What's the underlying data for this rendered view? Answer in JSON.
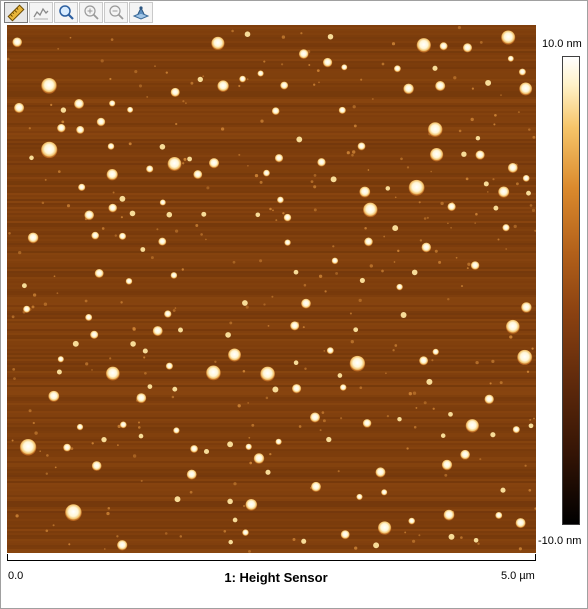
{
  "toolbar": {
    "tools": [
      {
        "icon": "ruler-icon",
        "active": true
      },
      {
        "icon": "section-icon",
        "active": false
      },
      {
        "icon": "zoom-icon",
        "active": false
      },
      {
        "icon": "zoom-in-icon",
        "active": false
      },
      {
        "icon": "zoom-out-icon",
        "active": false
      },
      {
        "icon": "view-3d-icon",
        "active": false
      }
    ]
  },
  "image": {
    "title": "1: Height Sensor",
    "x_axis_min": "0.0",
    "x_axis_max": "5.0 µm"
  },
  "colorbar": {
    "max_label": "10.0 nm",
    "min_label": "-10.0 nm"
  },
  "colors": {
    "substrate": "#7e3e0d",
    "particle": "#fffbe8",
    "particle_glow": "#f2c46e"
  }
}
